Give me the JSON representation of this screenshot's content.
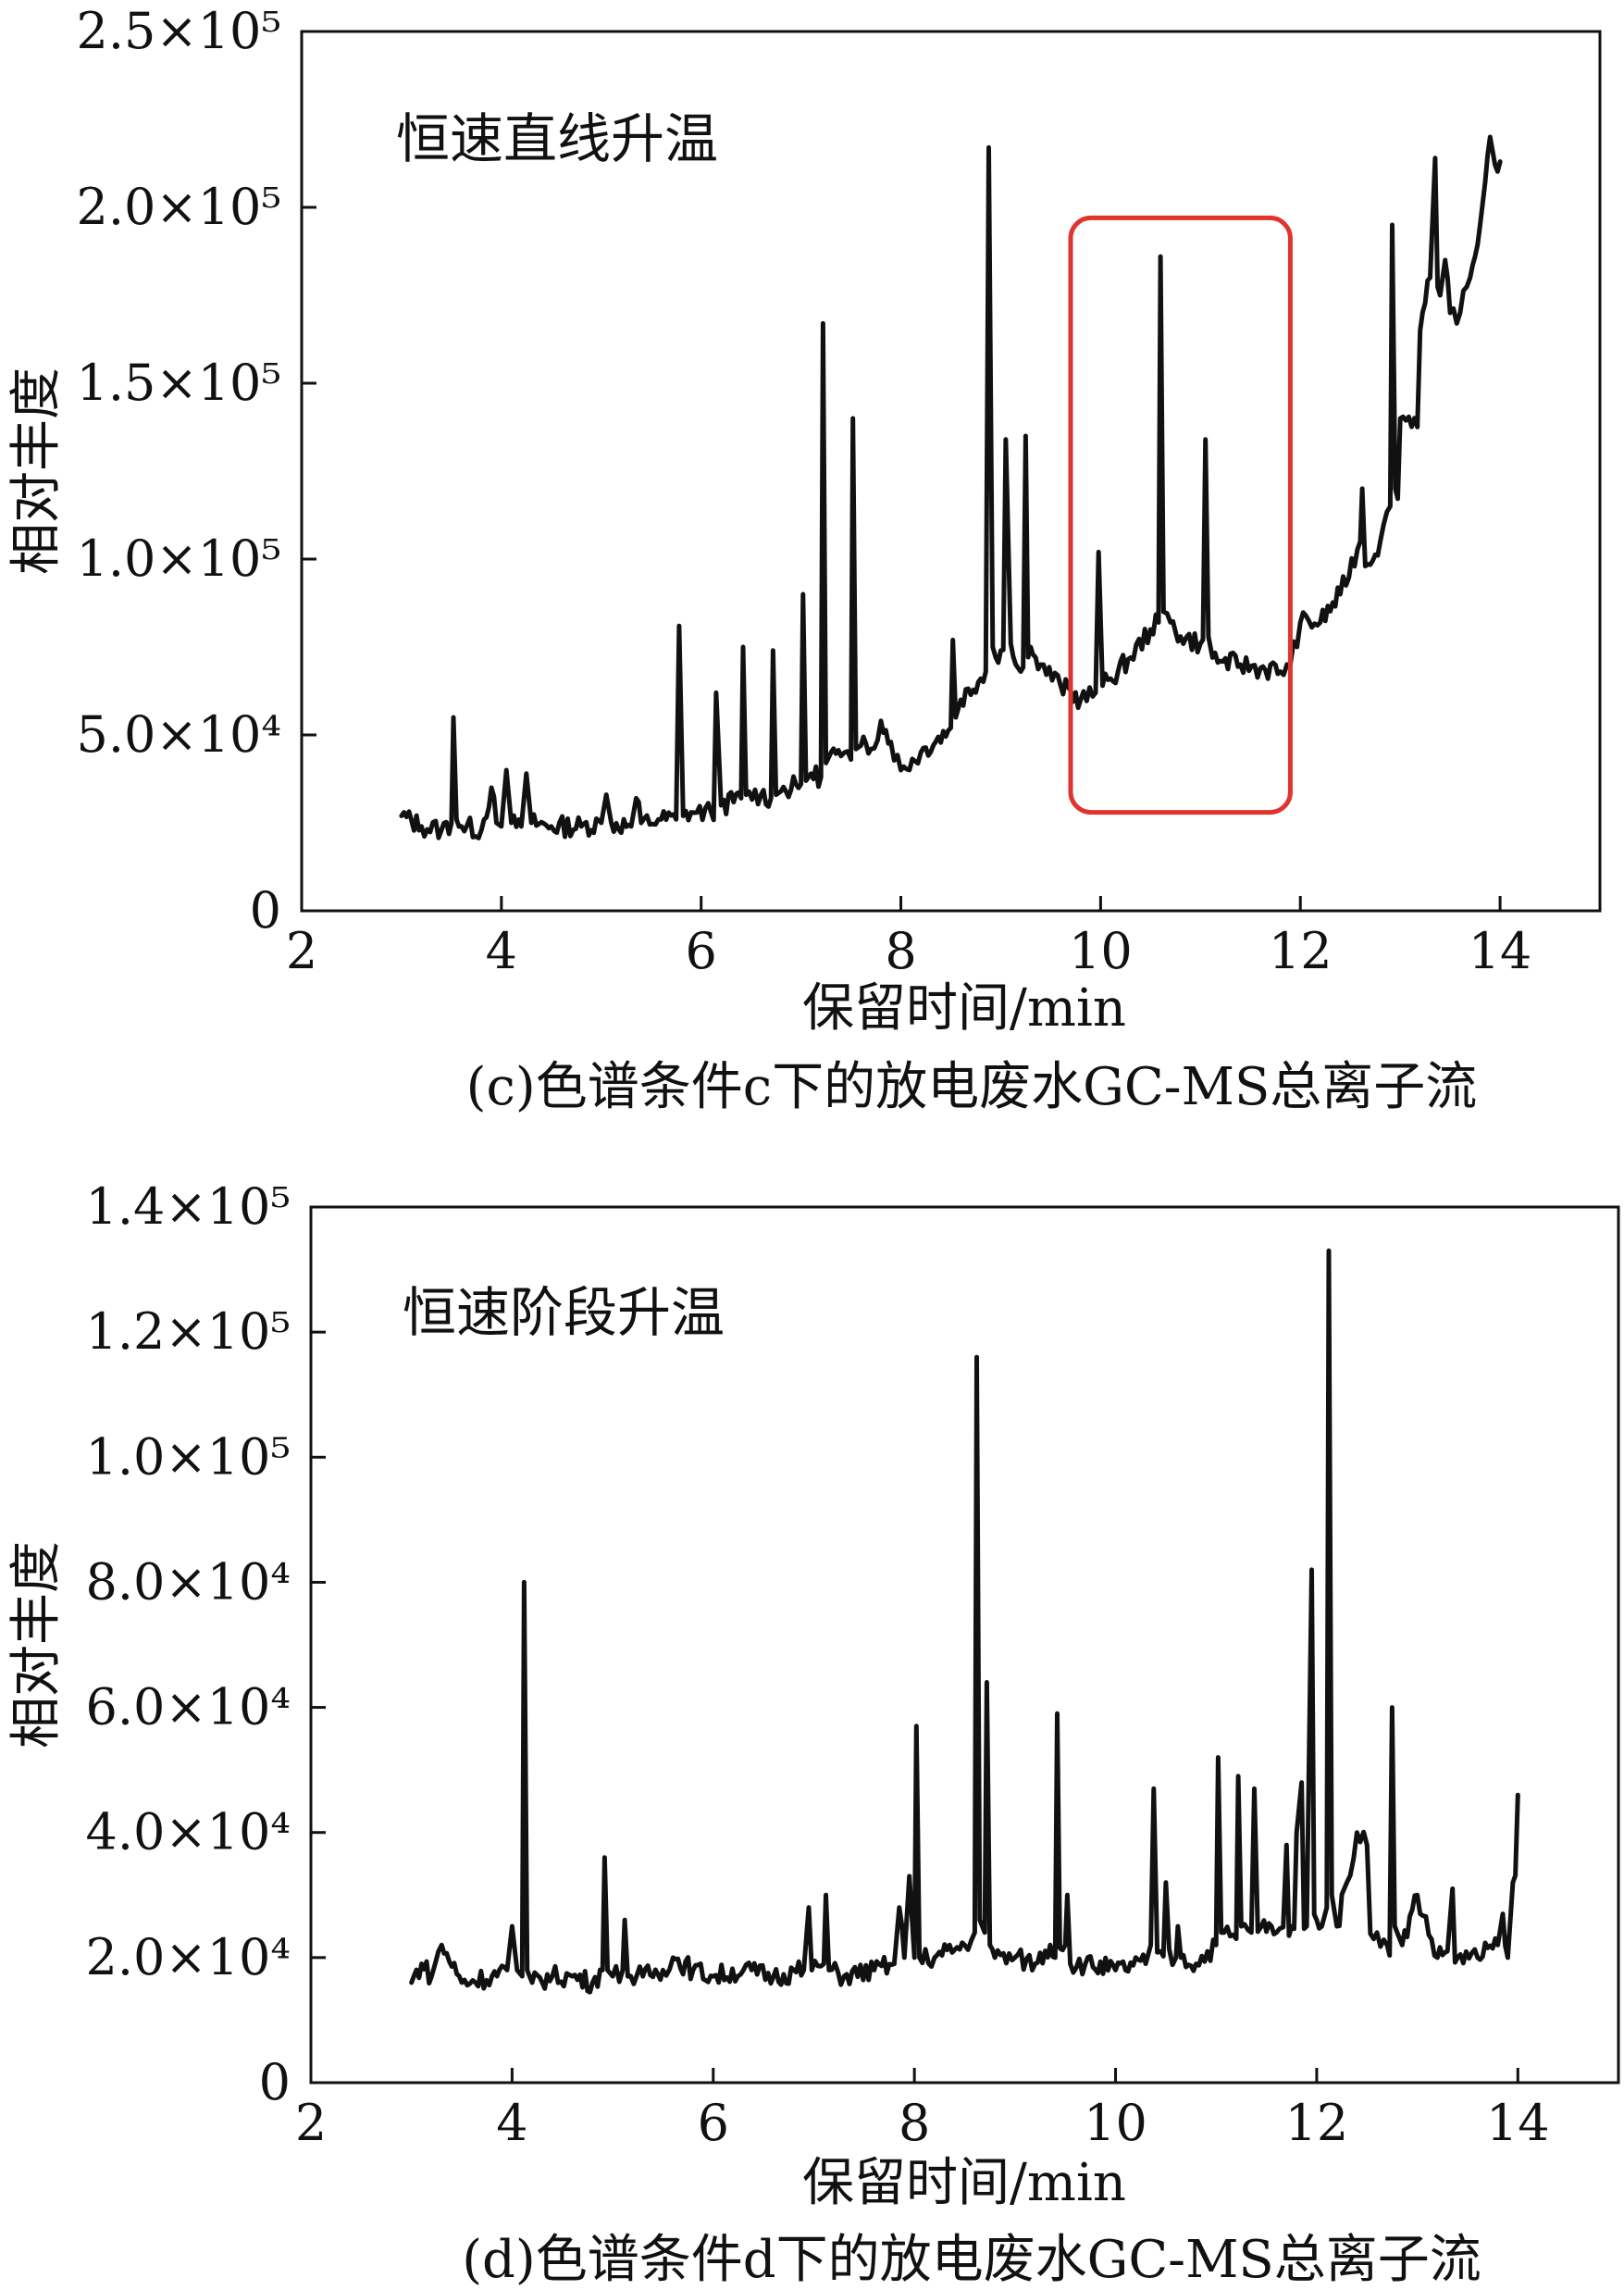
{
  "chart_data": [
    {
      "id": "c",
      "type": "line",
      "caption": "(c)色谱条件c下的放电废水GC-MS总离子流",
      "annotation": "恒速直线升温",
      "xlabel": "保留时间/min",
      "ylabel": "相对丰度",
      "xlim": [
        2,
        15
      ],
      "ylim": [
        0,
        250000
      ],
      "x_ticks": [
        {
          "value": 2,
          "label": "2"
        },
        {
          "value": 4,
          "label": "4"
        },
        {
          "value": 6,
          "label": "6"
        },
        {
          "value": 8,
          "label": "8"
        },
        {
          "value": 10,
          "label": "10"
        },
        {
          "value": 12,
          "label": "12"
        },
        {
          "value": 14,
          "label": "14"
        }
      ],
      "y_ticks": [
        {
          "value": 0,
          "label": "0"
        },
        {
          "value": 50000,
          "label": "5.0×10⁴"
        },
        {
          "value": 100000,
          "label": "1.0×10⁵"
        },
        {
          "value": 150000,
          "label": "1.5×10⁵"
        },
        {
          "value": 200000,
          "label": "2.0×10⁵"
        },
        {
          "value": 250000,
          "label": "2.5×10⁵"
        }
      ],
      "highlight_box": {
        "x0": 9.7,
        "x1": 11.9,
        "y0": 28000,
        "y1": 197000,
        "color": "#e0342f"
      },
      "series": [
        {
          "x": [
            3.0,
            3.2,
            3.4,
            3.5,
            3.52,
            3.55,
            3.6,
            3.8,
            3.9,
            3.95,
            4.0,
            4.05,
            4.1,
            4.2,
            4.25,
            4.3,
            4.5,
            4.8,
            5.0,
            5.05,
            5.1,
            5.3,
            5.35,
            5.4,
            5.6,
            5.75,
            5.78,
            5.82,
            5.9,
            6.1,
            6.15,
            6.2,
            6.4,
            6.42,
            6.45,
            6.6,
            6.7,
            6.72,
            6.75,
            6.8,
            7.0,
            7.02,
            7.05,
            7.1,
            7.2,
            7.22,
            7.25,
            7.3,
            7.4,
            7.5,
            7.52,
            7.55,
            7.6,
            7.7,
            7.8,
            7.9,
            8.0,
            8.2,
            8.5,
            8.52,
            8.55,
            8.6,
            8.85,
            8.88,
            8.92,
            8.95,
            9.0,
            9.05,
            9.1,
            9.15,
            9.2,
            9.25,
            9.3,
            9.32,
            9.35,
            9.4,
            9.6,
            9.8,
            9.95,
            9.98,
            10.02,
            10.1,
            10.3,
            10.5,
            10.58,
            10.6,
            10.63,
            10.7,
            10.8,
            11.0,
            11.05,
            11.08,
            11.12,
            11.2,
            11.4,
            11.6,
            11.8,
            11.9,
            12.0,
            12.2,
            12.4,
            12.6,
            12.62,
            12.65,
            12.8,
            12.9,
            12.92,
            12.95,
            13.0,
            13.2,
            13.3,
            13.35,
            13.4,
            13.45,
            13.5,
            13.6,
            13.7,
            13.8,
            13.85,
            13.9,
            13.95,
            14.0
          ],
          "y": [
            27000,
            24000,
            23000,
            25000,
            55000,
            26000,
            24000,
            23000,
            35000,
            25000,
            24000,
            40000,
            25000,
            24000,
            39000,
            25000,
            24000,
            24000,
            25000,
            33000,
            25000,
            24000,
            32000,
            25000,
            26000,
            26000,
            81000,
            27000,
            28000,
            28000,
            62000,
            30000,
            32000,
            75000,
            33000,
            33000,
            32000,
            74000,
            33000,
            34000,
            36000,
            90000,
            37000,
            39000,
            38000,
            167000,
            42000,
            45000,
            44000,
            43000,
            140000,
            46000,
            47000,
            46000,
            54000,
            48000,
            40000,
            45000,
            52000,
            77000,
            55000,
            60000,
            68000,
            217000,
            75000,
            72000,
            74000,
            134000,
            76000,
            70000,
            68000,
            135000,
            75000,
            73000,
            72000,
            70000,
            64000,
            60000,
            62000,
            102000,
            64000,
            66000,
            72000,
            80000,
            82000,
            186000,
            85000,
            82000,
            78000,
            76000,
            134000,
            78000,
            72000,
            71000,
            70000,
            69000,
            68000,
            70000,
            82000,
            82000,
            90000,
            105000,
            120000,
            98000,
            105000,
            115000,
            195000,
            120000,
            140000,
            165000,
            180000,
            214000,
            175000,
            185000,
            170000,
            170000,
            180000,
            195000,
            207000,
            220000,
            212000,
            213000
          ]
        }
      ]
    },
    {
      "id": "d",
      "type": "line",
      "caption": "(d)色谱条件d下的放电废水GC-MS总离子流",
      "annotation": "恒速阶段升温",
      "xlabel": "保留时间/min",
      "ylabel": "相对丰度",
      "xlim": [
        2,
        15
      ],
      "ylim": [
        0,
        140000
      ],
      "x_ticks": [
        {
          "value": 2,
          "label": "2"
        },
        {
          "value": 4,
          "label": "4"
        },
        {
          "value": 6,
          "label": "6"
        },
        {
          "value": 8,
          "label": "8"
        },
        {
          "value": 10,
          "label": "10"
        },
        {
          "value": 12,
          "label": "12"
        },
        {
          "value": 14,
          "label": "14"
        }
      ],
      "y_ticks": [
        {
          "value": 0,
          "label": "0"
        },
        {
          "value": 20000,
          "label": "2.0×10⁴"
        },
        {
          "value": 40000,
          "label": "4.0×10⁴"
        },
        {
          "value": 60000,
          "label": "6.0×10⁴"
        },
        {
          "value": 80000,
          "label": "8.0×10⁴"
        },
        {
          "value": 100000,
          "label": "1.0×10⁵"
        },
        {
          "value": 120000,
          "label": "1.2×10⁵"
        },
        {
          "value": 140000,
          "label": "1.4×10⁵"
        }
      ],
      "series": [
        {
          "x": [
            3.0,
            3.1,
            3.2,
            3.3,
            3.5,
            3.8,
            3.95,
            4.0,
            4.05,
            4.1,
            4.12,
            4.15,
            4.2,
            4.4,
            4.6,
            4.8,
            4.9,
            4.92,
            4.95,
            5.0,
            5.1,
            5.12,
            5.15,
            5.3,
            5.5,
            5.6,
            5.8,
            6.0,
            6.3,
            6.6,
            6.9,
            6.95,
            6.98,
            7.1,
            7.12,
            7.15,
            7.3,
            7.6,
            7.8,
            7.85,
            7.9,
            7.95,
            8.0,
            8.02,
            8.05,
            8.2,
            8.5,
            8.6,
            8.62,
            8.65,
            8.7,
            8.72,
            8.75,
            8.8,
            9.0,
            9.2,
            9.35,
            9.4,
            9.42,
            9.5,
            9.52,
            9.55,
            9.7,
            10.0,
            10.3,
            10.35,
            10.38,
            10.45,
            10.5,
            10.6,
            10.62,
            10.65,
            10.8,
            11.0,
            11.02,
            11.05,
            11.2,
            11.22,
            11.25,
            11.35,
            11.38,
            11.45,
            11.6,
            11.7,
            11.75,
            11.8,
            11.85,
            11.9,
            11.95,
            12.0,
            12.05,
            12.1,
            12.12,
            12.15,
            12.2,
            12.3,
            12.4,
            12.5,
            12.6,
            12.7,
            12.75,
            12.8,
            12.85,
            13.0,
            13.2,
            13.3,
            13.35,
            13.4,
            13.6,
            13.8,
            13.85,
            13.9,
            13.95,
            14.0
          ],
          "y": [
            16000,
            19000,
            17000,
            22000,
            16000,
            17000,
            18000,
            25000,
            18000,
            17000,
            80000,
            18000,
            16000,
            17000,
            17000,
            16000,
            18000,
            36000,
            18000,
            17000,
            18000,
            26000,
            17000,
            17000,
            18000,
            20000,
            18000,
            17000,
            18000,
            17000,
            18000,
            28000,
            18000,
            19000,
            30000,
            18000,
            17000,
            18000,
            19000,
            28000,
            20000,
            33000,
            20000,
            57000,
            20000,
            20000,
            22000,
            24000,
            116000,
            26000,
            24000,
            64000,
            22000,
            20000,
            20000,
            19000,
            22000,
            20000,
            59000,
            22000,
            30000,
            19000,
            19000,
            18000,
            19000,
            22000,
            47000,
            21000,
            32000,
            20000,
            25000,
            20000,
            19000,
            22000,
            52000,
            24000,
            23000,
            49000,
            25000,
            24000,
            47000,
            25000,
            24000,
            38000,
            25000,
            40000,
            48000,
            25000,
            82000,
            26000,
            25000,
            28000,
            133000,
            30000,
            25000,
            32000,
            40000,
            38000,
            24000,
            22000,
            60000,
            24000,
            22000,
            30000,
            20000,
            21000,
            31000,
            20000,
            20000,
            22000,
            27000,
            20000,
            32000,
            46000
          ]
        }
      ]
    }
  ]
}
